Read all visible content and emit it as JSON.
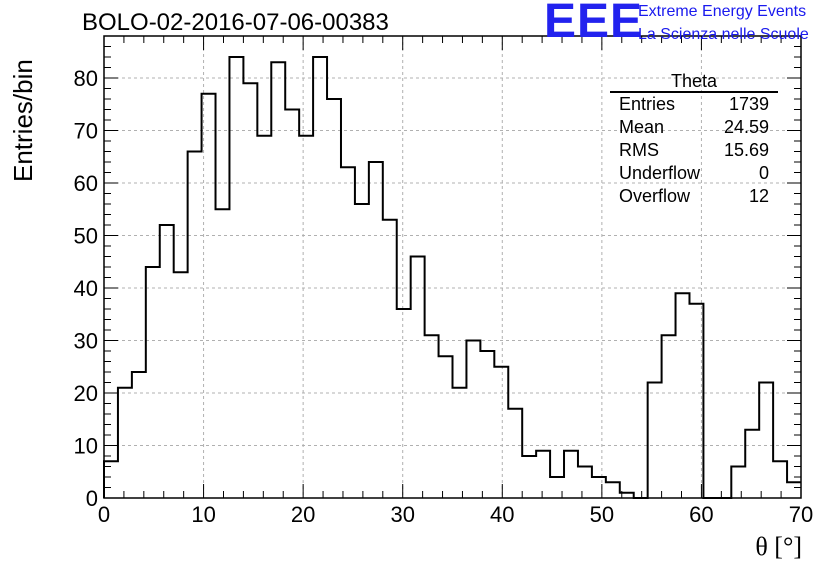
{
  "title": "BOLO-02-2016-07-06-00383",
  "logo": {
    "mark": "EEE",
    "line1": "Extreme Energy Events",
    "line2": "La Scienza nelle Scuole",
    "color": "#2222ee"
  },
  "stats": {
    "name": "Theta",
    "rows": [
      {
        "label": "Entries",
        "value": "1739"
      },
      {
        "label": "Mean",
        "value": "24.59"
      },
      {
        "label": "RMS",
        "value": "15.69"
      },
      {
        "label": "Underflow",
        "value": "0"
      },
      {
        "label": "Overflow",
        "value": "12"
      }
    ]
  },
  "chart_data": {
    "type": "bar",
    "style": "step-histogram",
    "title": "BOLO-02-2016-07-06-00383",
    "xlabel": "θ [°]",
    "ylabel": "Entries/bin",
    "xlim": [
      0,
      70
    ],
    "ylim": [
      0,
      88
    ],
    "bin_width": 1.4,
    "x_ticks": [
      0,
      10,
      20,
      30,
      40,
      50,
      60,
      70
    ],
    "y_ticks": [
      0,
      10,
      20,
      30,
      40,
      50,
      60,
      70,
      80
    ],
    "grid": true,
    "values": [
      7,
      21,
      24,
      44,
      52,
      43,
      66,
      77,
      55,
      84,
      79,
      69,
      83,
      74,
      69,
      84,
      76,
      63,
      56,
      64,
      53,
      36,
      46,
      31,
      27,
      21,
      30,
      28,
      25,
      17,
      8,
      9,
      4,
      9,
      6,
      4,
      3,
      1,
      0,
      22,
      31,
      39,
      37,
      0,
      0,
      6,
      13,
      22,
      7,
      3
    ]
  }
}
